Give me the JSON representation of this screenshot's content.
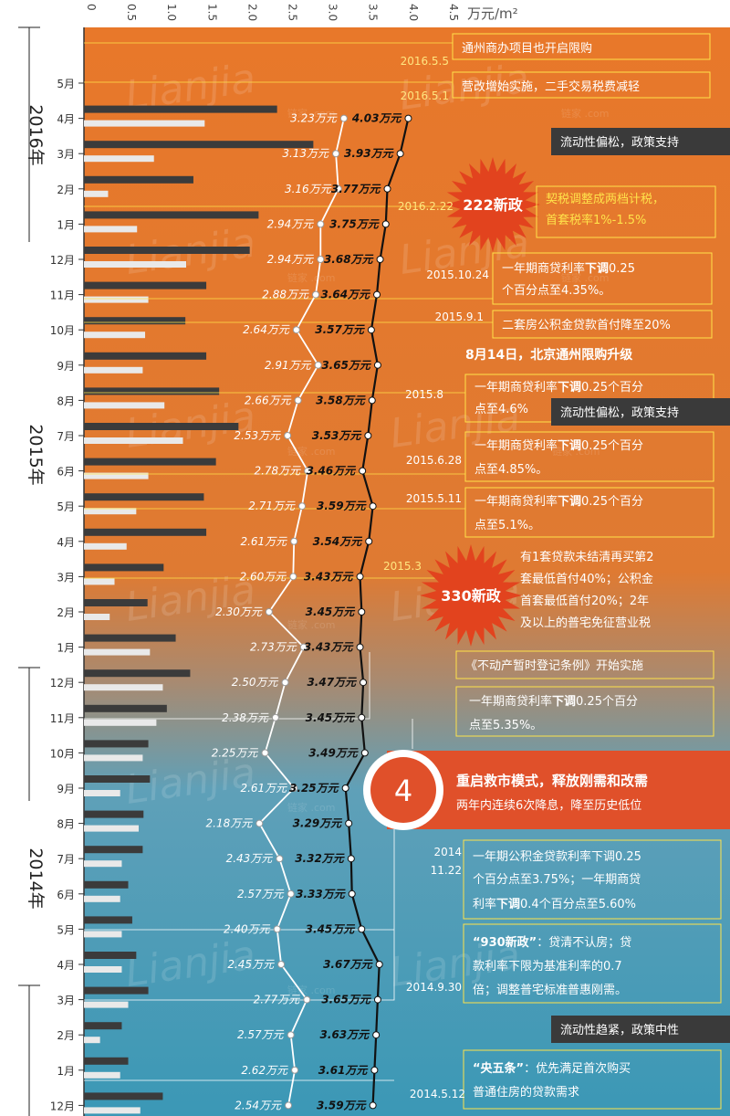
{
  "chart_data": {
    "type": "line",
    "unit_label": "万元/m²",
    "xlim": [
      0,
      4.5
    ],
    "x_ticks": [
      "0",
      "0.5",
      "1.0",
      "1.5",
      "2.0",
      "2.5",
      "3.0",
      "3.5",
      "4.0",
      "4.5"
    ],
    "categories": [
      "2016.5",
      "2016.4",
      "2016.3",
      "2016.2",
      "2016.1",
      "2015.12",
      "2015.11",
      "2015.10",
      "2015.9",
      "2015.8",
      "2015.7",
      "2015.6",
      "2015.5",
      "2015.4",
      "2015.3",
      "2015.2",
      "2015.1",
      "2014.12",
      "2014.11",
      "2014.10",
      "2014.9",
      "2014.8",
      "2014.7",
      "2014.6",
      "2014.5",
      "2014.4",
      "2014.3",
      "2014.2",
      "2014.1",
      "2013.12"
    ],
    "month_labels": [
      "5月",
      "4月",
      "3月",
      "2月",
      "1月",
      "12月",
      "11月",
      "10月",
      "9月",
      "8月",
      "7月",
      "6月",
      "5月",
      "4月",
      "3月",
      "2月",
      "1月",
      "12月",
      "11月",
      "10月",
      "9月",
      "8月",
      "7月",
      "6月",
      "5月",
      "4月",
      "3月",
      "2月",
      "1月",
      "12月"
    ],
    "year_labels": [
      "2016年",
      "2015年",
      "2014年"
    ],
    "series": [
      {
        "name": "",
        "color": "#ffffff",
        "unit_suffix": "万元",
        "values": [
          null,
          3.23,
          3.13,
          3.16,
          2.94,
          2.94,
          2.88,
          2.64,
          2.91,
          2.66,
          2.53,
          2.78,
          2.71,
          2.61,
          2.6,
          2.3,
          2.73,
          2.5,
          2.38,
          2.25,
          2.61,
          2.18,
          2.43,
          2.57,
          2.4,
          2.45,
          2.77,
          2.57,
          2.62,
          2.54
        ]
      },
      {
        "name": "",
        "color": "#111111",
        "unit_suffix": "万元",
        "values": [
          null,
          4.03,
          3.93,
          3.77,
          3.75,
          3.68,
          3.64,
          3.57,
          3.65,
          3.58,
          3.53,
          3.46,
          3.59,
          3.54,
          3.43,
          3.45,
          3.43,
          3.47,
          3.45,
          3.49,
          3.25,
          3.29,
          3.32,
          3.33,
          3.45,
          3.67,
          3.65,
          3.63,
          3.61,
          3.59
        ]
      }
    ],
    "bars_dark": [
      null,
      2.4,
      2.85,
      1.36,
      2.17,
      2.06,
      1.52,
      1.26,
      1.52,
      1.68,
      1.92,
      1.64,
      1.49,
      1.52,
      0.99,
      0.79,
      1.14,
      1.32,
      1.03,
      0.8,
      0.82,
      0.74,
      0.73,
      0.55,
      0.6,
      0.65,
      0.8,
      0.47,
      0.55,
      0.98
    ],
    "bars_light": [
      null,
      1.5,
      0.87,
      0.3,
      0.66,
      1.27,
      0.8,
      0.76,
      0.73,
      1.0,
      1.23,
      0.8,
      0.65,
      0.53,
      0.38,
      0.32,
      0.82,
      0.98,
      0.9,
      0.73,
      0.45,
      0.68,
      0.47,
      0.45,
      0.47,
      0.47,
      0.55,
      0.2,
      0.45,
      0.7
    ]
  },
  "annotations": [
    {
      "date": "2016.5.5",
      "text": "通州商办项目也开启限购"
    },
    {
      "date": "2016.5.1",
      "text": "营改增始实施，二手交易税费减轻"
    },
    {
      "date": "2016.2.22",
      "badge": "222新政",
      "lines": [
        "契税调整成两档计税，",
        "首套税率1%-1.5%"
      ]
    },
    {
      "date": "2015.10.24",
      "lines": [
        "一年期商贷利率",
        "下调",
        "0.25",
        "个百分点至4.35%。"
      ]
    },
    {
      "date": "2015.9.1",
      "text": "二套房公积金贷款首付降至20%"
    },
    {
      "text": "8月14日，北京通州限购升级"
    },
    {
      "date": "2015.8",
      "lines": [
        "一年期商贷利率",
        "下调",
        "0.25个百分",
        "点至4.6%"
      ]
    },
    {
      "date": "2015.6.28",
      "lines": [
        "一年期商贷利率",
        "下调",
        "0.25个百分",
        "点至4.85%。"
      ]
    },
    {
      "date": "2015.5.11",
      "lines": [
        "一年期商贷利率",
        "下调",
        "0.25个百分",
        "点至5.1%。"
      ]
    },
    {
      "date": "2015.3",
      "badge": "330新政",
      "lines": [
        "有1套贷款未结清再买第2",
        "套最低首付40%；公积金",
        "首套最低首付20%；2年",
        "及以上的普宅免征营业税"
      ]
    },
    {
      "text": "《不动产暂时登记条例》开始实施"
    },
    {
      "lines": [
        "一年期商贷利率",
        "下调",
        "0.25个百分",
        "点至5.35%。"
      ]
    },
    {
      "date_lines": [
        "2014",
        "11.22"
      ],
      "lines": [
        "一年期公积金贷款利率下调0.25",
        "个百分点至3.75%；一年期商贷",
        "利率",
        "下调",
        "0.4个百分点至5.60%"
      ]
    },
    {
      "date": "2014.9.30",
      "lines": [
        "“930新政”",
        "：贷清不认房；贷",
        "款利率下限为基准利率的0.7",
        "倍；调整普宅标准普惠刚需。"
      ]
    },
    {
      "date": "2014.5.12",
      "lines": [
        "“央五条”",
        "：优先满足首次购买",
        "普通住房的贷款需求"
      ]
    }
  ],
  "policy_tags": [
    "流动性偏松，政策支持",
    "流动性偏松，政策支持",
    "流动性趋紧，政策中性"
  ],
  "highlight": {
    "number": "4",
    "title": "重启救市模式，释放刚需和改需",
    "subtitle": "两年内连续6次降息，降至历史低位"
  },
  "watermark": "Lianjia",
  "watermark_small": "链家 .com",
  "colors": {
    "orange": "#e8782a",
    "teal": "#3a98b8",
    "highlight_red": "#e0502a",
    "yellow": "#ffe24a",
    "dark_bar": "#3b3b3b",
    "light_bar": "#e9e9e9"
  }
}
